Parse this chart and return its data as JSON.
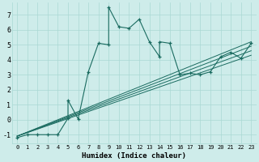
{
  "xlabel": "Humidex (Indice chaleur)",
  "bg_color": "#ceecea",
  "grid_color": "#aad8d4",
  "line_color": "#1a6b60",
  "xlim": [
    -0.5,
    23.5
  ],
  "ylim": [
    -1.6,
    7.8
  ],
  "xticks": [
    0,
    1,
    2,
    3,
    4,
    5,
    6,
    7,
    8,
    9,
    10,
    11,
    12,
    13,
    14,
    15,
    16,
    17,
    18,
    19,
    20,
    21,
    22,
    23
  ],
  "yticks": [
    -1,
    0,
    1,
    2,
    3,
    4,
    5,
    6,
    7
  ],
  "main_x": [
    0,
    1,
    2,
    3,
    4,
    5,
    5,
    6,
    7,
    8,
    9,
    9,
    10,
    11,
    12,
    13,
    14,
    14,
    15,
    16,
    17,
    18,
    19,
    20,
    21,
    22,
    23
  ],
  "main_y": [
    -1.2,
    -1.0,
    -1.0,
    -1.0,
    -1.0,
    0.1,
    1.3,
    0.05,
    3.2,
    5.1,
    5.0,
    7.5,
    6.2,
    6.1,
    6.7,
    5.2,
    4.2,
    5.2,
    5.1,
    3.0,
    3.1,
    3.0,
    3.2,
    4.2,
    4.5,
    4.1,
    5.1
  ],
  "line2_x": [
    0,
    23
  ],
  "line2_y": [
    -1.1,
    5.2
  ],
  "line3_x": [
    0,
    23
  ],
  "line3_y": [
    -1.1,
    4.9
  ],
  "line4_x": [
    0,
    23
  ],
  "line4_y": [
    -1.1,
    4.6
  ],
  "line5_x": [
    0,
    23
  ],
  "line5_y": [
    -1.1,
    4.3
  ]
}
